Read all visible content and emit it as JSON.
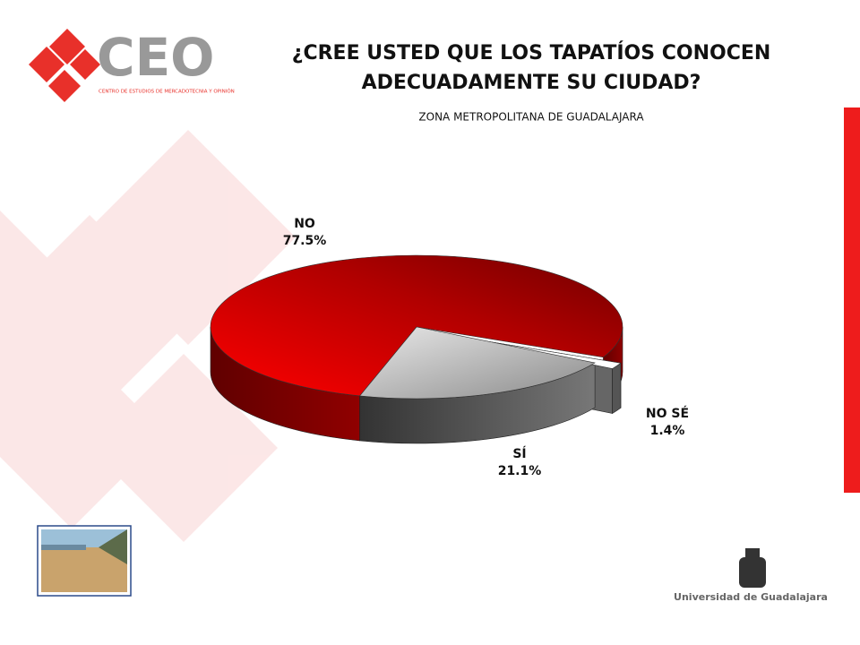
{
  "logo": {
    "text": "CEO",
    "subtitle": "CENTRO DE ESTUDIOS DE MERCADOTECNIA Y OPINIÓN"
  },
  "footer_text": "Universidad de Guadalajara",
  "chart_data": {
    "type": "pie",
    "title": "¿CREE USTED QUE LOS TAPATÍOS CONOCEN ADECUADAMENTE SU CIUDAD?",
    "subtitle": "ZONA METROPOLITANA DE GUADALAJARA",
    "categories": [
      "NO",
      "NO SÉ",
      "SÍ"
    ],
    "values": [
      77.5,
      1.4,
      21.1
    ],
    "value_labels": [
      "77.5%",
      "1.4%",
      "21.1%"
    ],
    "colors": [
      "#e00000",
      "#ffffff",
      "#a8a8a8"
    ]
  }
}
